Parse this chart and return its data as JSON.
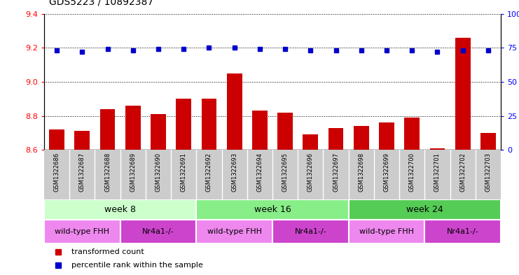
{
  "title": "GDS5223 / 10892387",
  "samples": [
    "GSM1322686",
    "GSM1322687",
    "GSM1322688",
    "GSM1322689",
    "GSM1322690",
    "GSM1322691",
    "GSM1322692",
    "GSM1322693",
    "GSM1322694",
    "GSM1322695",
    "GSM1322696",
    "GSM1322697",
    "GSM1322698",
    "GSM1322699",
    "GSM1322700",
    "GSM1322701",
    "GSM1322702",
    "GSM1322703"
  ],
  "bar_values": [
    8.72,
    8.71,
    8.84,
    8.86,
    8.81,
    8.9,
    8.9,
    9.05,
    8.83,
    8.82,
    8.69,
    8.73,
    8.74,
    8.76,
    8.79,
    8.61,
    9.26,
    8.7
  ],
  "dot_values": [
    73,
    72,
    74,
    73,
    74,
    74,
    75,
    75,
    74,
    74,
    73,
    73,
    73,
    73,
    73,
    72,
    73,
    73
  ],
  "ymin": 8.6,
  "ymax": 9.4,
  "y2min": 0,
  "y2max": 100,
  "yticks": [
    8.6,
    8.8,
    9.0,
    9.2,
    9.4
  ],
  "y2ticks": [
    0,
    25,
    50,
    75,
    100
  ],
  "bar_color": "#cc0000",
  "dot_color": "#0000cc",
  "week8_color": "#ccffcc",
  "week16_color": "#88ee88",
  "week24_color": "#55cc55",
  "wt_color": "#ee88ee",
  "nr_color": "#cc44cc",
  "sample_bg_color": "#cccccc",
  "time_groups": [
    {
      "label": "week 8",
      "start": 0,
      "end": 6
    },
    {
      "label": "week 16",
      "start": 6,
      "end": 12
    },
    {
      "label": "week 24",
      "start": 12,
      "end": 18
    }
  ],
  "genotype_groups": [
    {
      "label": "wild-type FHH",
      "start": 0,
      "end": 3
    },
    {
      "label": "Nr4a1-/-",
      "start": 3,
      "end": 6
    },
    {
      "label": "wild-type FHH",
      "start": 6,
      "end": 9
    },
    {
      "label": "Nr4a1-/-",
      "start": 9,
      "end": 12
    },
    {
      "label": "wild-type FHH",
      "start": 12,
      "end": 15
    },
    {
      "label": "Nr4a1-/-",
      "start": 15,
      "end": 18
    }
  ],
  "legend_items": [
    {
      "label": "transformed count",
      "color": "#cc0000"
    },
    {
      "label": "percentile rank within the sample",
      "color": "#0000cc"
    }
  ]
}
